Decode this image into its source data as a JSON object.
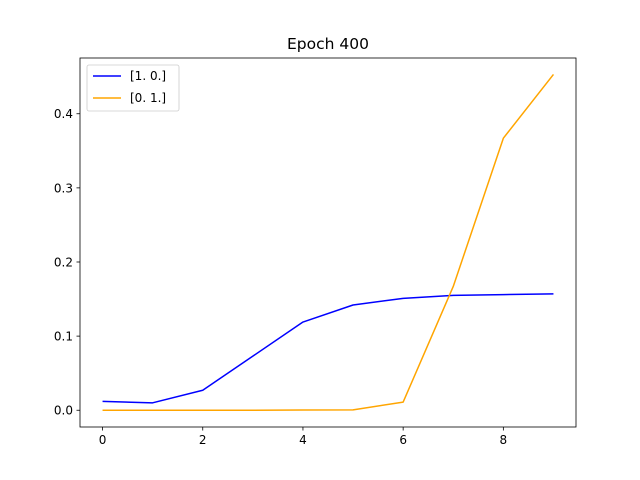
{
  "chart_data": {
    "type": "line",
    "title": "Epoch 400",
    "xlabel": "",
    "ylabel": "",
    "x": [
      0,
      1,
      2,
      3,
      4,
      5,
      6,
      7,
      8,
      9
    ],
    "xlim": [
      -0.45,
      9.45
    ],
    "ylim": [
      -0.0226,
      0.4752
    ],
    "xticks": [
      "0",
      "2",
      "4",
      "6",
      "8"
    ],
    "yticks": [
      "0.0",
      "0.1",
      "0.2",
      "0.3",
      "0.4"
    ],
    "grid": false,
    "legend_position": "top-left",
    "series": [
      {
        "name": "[1. 0.]",
        "color": "#0000ff",
        "values": [
          0.012,
          0.01,
          0.027,
          0.073,
          0.119,
          0.142,
          0.151,
          0.155,
          0.156,
          0.157
        ]
      },
      {
        "name": "[0. 1.]",
        "color": "#ffa500",
        "values": [
          0.0,
          0.0,
          0.0,
          0.0,
          0.0003,
          0.0005,
          0.011,
          0.167,
          0.367,
          0.453
        ]
      }
    ]
  }
}
